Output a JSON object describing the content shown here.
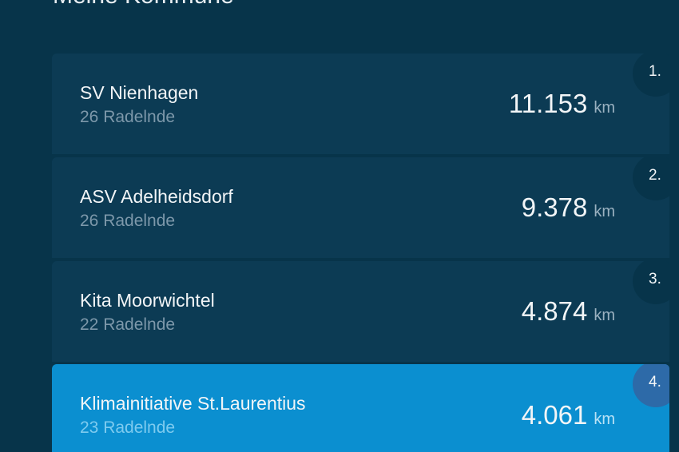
{
  "header": {
    "title": "Meine Kommune"
  },
  "colors": {
    "background": "#07344a",
    "card": "#0c3b54",
    "highlight": "#0b8fd0",
    "highlight_badge": "#2d6aa8"
  },
  "rankings": [
    {
      "rank": "1.",
      "name": "SV Nienhagen",
      "members": "26 Radelnde",
      "distance": "11.153",
      "unit": "km",
      "highlighted": false
    },
    {
      "rank": "2.",
      "name": "ASV Adelheidsdorf",
      "members": "26 Radelnde",
      "distance": "9.378",
      "unit": "km",
      "highlighted": false
    },
    {
      "rank": "3.",
      "name": "Kita Moorwichtel",
      "members": "22 Radelnde",
      "distance": "4.874",
      "unit": "km",
      "highlighted": false
    },
    {
      "rank": "4.",
      "name": "Klimainitiative St.Laurentius",
      "members": "23 Radelnde",
      "distance": "4.061",
      "unit": "km",
      "highlighted": true
    }
  ]
}
